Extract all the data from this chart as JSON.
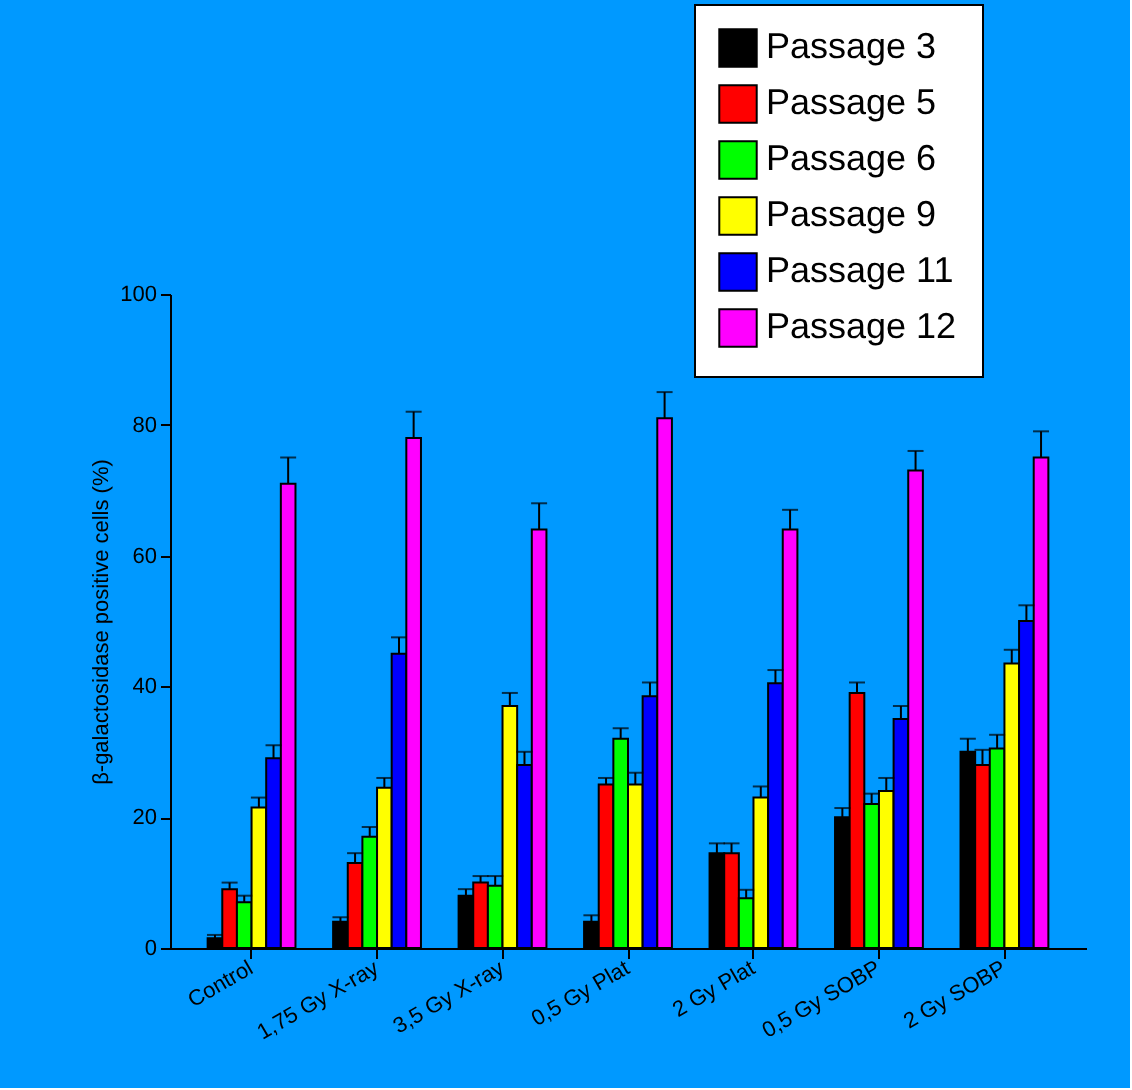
{
  "chart_data": {
    "type": "bar",
    "ylabel": "β-galactosidase positive cells (%)",
    "categories": [
      "Control",
      "1,75 Gy X-ray",
      "3,5 Gy X-ray",
      "0,5 Gy Plat",
      "2 Gy Plat",
      "0,5 Gy SOBP",
      "2 Gy SOBP"
    ],
    "series": [
      {
        "name": "Passage 3",
        "color": "#000000",
        "values": [
          1.5,
          4,
          8,
          4,
          14.5,
          20,
          30
        ],
        "errors": [
          [
            1.5,
            2
          ],
          [
            4,
            4.7
          ],
          [
            8,
            9
          ],
          [
            4,
            5
          ],
          [
            14.5,
            16
          ],
          [
            20,
            21.4
          ],
          [
            30,
            32
          ]
        ]
      },
      {
        "name": "Passage 5",
        "color": "#ff0000",
        "values": [
          9,
          13,
          10,
          25,
          14.5,
          39,
          28
        ],
        "errors": [
          [
            9,
            10
          ],
          [
            13,
            14.5
          ],
          [
            10,
            11
          ],
          [
            25,
            26
          ],
          [
            14.5,
            16
          ],
          [
            39,
            40.6
          ],
          [
            28,
            30.3
          ]
        ]
      },
      {
        "name": "Passage 6",
        "color": "#00ff00",
        "values": [
          7,
          17,
          9.5,
          32,
          7.6,
          22,
          30.5
        ],
        "errors": [
          [
            7,
            8
          ],
          [
            17,
            18.5
          ],
          [
            9.5,
            11
          ],
          [
            32,
            33.6
          ],
          [
            7.6,
            8.9
          ],
          [
            22,
            23.6
          ],
          [
            30.5,
            32.6
          ]
        ]
      },
      {
        "name": "Passage 9",
        "color": "#ffff00",
        "values": [
          21.5,
          24.5,
          37,
          25,
          23,
          24,
          43.5
        ],
        "errors": [
          [
            21.5,
            23
          ],
          [
            24.5,
            26
          ],
          [
            37,
            39
          ],
          [
            25,
            26.8
          ],
          [
            23,
            24.7
          ],
          [
            24,
            26
          ],
          [
            43.5,
            45.6
          ]
        ]
      },
      {
        "name": "Passage 11",
        "color": "#0000ff",
        "values": [
          29,
          45,
          28,
          38.5,
          40.5,
          35,
          50
        ],
        "errors": [
          [
            29,
            31
          ],
          [
            45,
            47.5
          ],
          [
            28,
            30
          ],
          [
            38.5,
            40.6
          ],
          [
            40.5,
            42.5
          ],
          [
            35,
            37
          ],
          [
            50,
            52.4
          ]
        ]
      },
      {
        "name": "Passage 12",
        "color": "#ff00ff",
        "values": [
          71,
          78,
          64,
          81,
          64,
          73,
          75
        ],
        "errors": [
          [
            71,
            75
          ],
          [
            78,
            82
          ],
          [
            64,
            68
          ],
          [
            81,
            85
          ],
          [
            64,
            67
          ],
          [
            73,
            76
          ],
          [
            75,
            79
          ]
        ]
      }
    ],
    "ylim": [
      0,
      100
    ],
    "yticks": [
      0,
      20,
      40,
      60,
      80,
      100
    ],
    "grid": false,
    "legend": "top right"
  }
}
